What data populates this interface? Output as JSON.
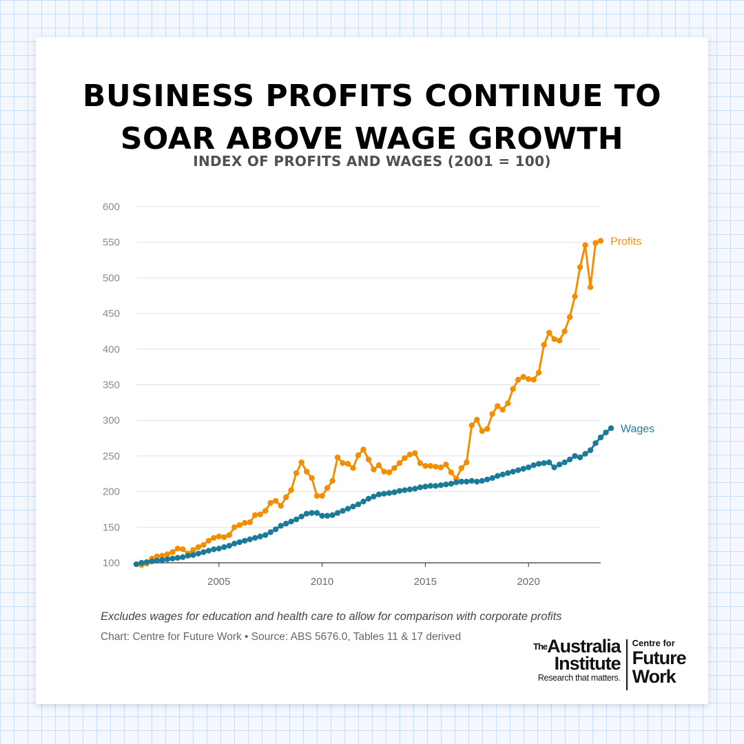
{
  "title_lines": [
    "BUSINESS PROFITS CONTINUE TO",
    "SOAR ABOVE WAGE GROWTH"
  ],
  "subtitle": "INDEX OF PROFITS AND WAGES (2001 = 100)",
  "chart_data": {
    "type": "line",
    "title": "BUSINESS PROFITS CONTINUE TO SOAR ABOVE WAGE GROWTH",
    "subtitle": "INDEX OF PROFITS AND WAGES (2001 = 100)",
    "ylim": [
      100,
      600
    ],
    "y_ticks": [
      100,
      150,
      200,
      250,
      300,
      350,
      400,
      450,
      500,
      550,
      600
    ],
    "xlim": [
      2001.0,
      2023.25
    ],
    "x_ticks": [
      2005,
      2010,
      2015,
      2020
    ],
    "grid": true,
    "legend": "direct labels at line ends",
    "series": [
      {
        "name": "Profits",
        "color": "#f28e00",
        "points": [
          [
            2001.0,
            98
          ],
          [
            2001.25,
            97
          ],
          [
            2001.5,
            99
          ],
          [
            2001.75,
            106
          ],
          [
            2002.0,
            109
          ],
          [
            2002.25,
            110
          ],
          [
            2002.5,
            112
          ],
          [
            2002.75,
            115
          ],
          [
            2003.0,
            120
          ],
          [
            2003.25,
            119
          ],
          [
            2003.5,
            113
          ],
          [
            2003.75,
            118
          ],
          [
            2004.0,
            122
          ],
          [
            2004.25,
            125
          ],
          [
            2004.5,
            131
          ],
          [
            2004.75,
            135
          ],
          [
            2005.0,
            137
          ],
          [
            2005.25,
            136
          ],
          [
            2005.5,
            139
          ],
          [
            2005.75,
            150
          ],
          [
            2006.0,
            153
          ],
          [
            2006.25,
            156
          ],
          [
            2006.5,
            157
          ],
          [
            2006.75,
            167
          ],
          [
            2007.0,
            168
          ],
          [
            2007.25,
            173
          ],
          [
            2007.5,
            184
          ],
          [
            2007.75,
            187
          ],
          [
            2008.0,
            180
          ],
          [
            2008.25,
            192
          ],
          [
            2008.5,
            202
          ],
          [
            2008.75,
            226
          ],
          [
            2009.0,
            241
          ],
          [
            2009.25,
            228
          ],
          [
            2009.5,
            219
          ],
          [
            2009.75,
            194
          ],
          [
            2010.0,
            194
          ],
          [
            2010.25,
            205
          ],
          [
            2010.5,
            215
          ],
          [
            2010.75,
            248
          ],
          [
            2011.0,
            240
          ],
          [
            2011.25,
            239
          ],
          [
            2011.5,
            233
          ],
          [
            2011.75,
            251
          ],
          [
            2012.0,
            259
          ],
          [
            2012.25,
            245
          ],
          [
            2012.5,
            231
          ],
          [
            2012.75,
            237
          ],
          [
            2013.0,
            228
          ],
          [
            2013.25,
            227
          ],
          [
            2013.5,
            233
          ],
          [
            2013.75,
            240
          ],
          [
            2014.0,
            247
          ],
          [
            2014.25,
            252
          ],
          [
            2014.5,
            254
          ],
          [
            2014.75,
            240
          ],
          [
            2015.0,
            236
          ],
          [
            2015.25,
            236
          ],
          [
            2015.5,
            235
          ],
          [
            2015.75,
            234
          ],
          [
            2016.0,
            238
          ],
          [
            2016.25,
            227
          ],
          [
            2016.5,
            218
          ],
          [
            2016.75,
            233
          ],
          [
            2017.0,
            241
          ],
          [
            2017.25,
            293
          ],
          [
            2017.5,
            301
          ],
          [
            2017.75,
            285
          ],
          [
            2018.0,
            288
          ],
          [
            2018.25,
            309
          ],
          [
            2018.5,
            320
          ],
          [
            2018.75,
            315
          ],
          [
            2019.0,
            324
          ],
          [
            2019.25,
            344
          ],
          [
            2019.5,
            357
          ],
          [
            2019.75,
            361
          ],
          [
            2020.0,
            358
          ],
          [
            2020.25,
            357
          ],
          [
            2020.5,
            367
          ],
          [
            2020.75,
            406
          ],
          [
            2021.0,
            423
          ],
          [
            2021.25,
            414
          ],
          [
            2021.5,
            412
          ],
          [
            2021.75,
            425
          ],
          [
            2022.0,
            445
          ],
          [
            2022.25,
            474
          ],
          [
            2022.5,
            515
          ],
          [
            2022.75,
            546
          ],
          [
            2023.0,
            487
          ],
          [
            2023.25,
            549
          ],
          [
            2023.5,
            552
          ]
        ]
      },
      {
        "name": "Wages",
        "color": "#1b7a99",
        "points": [
          [
            2001.0,
            98
          ],
          [
            2001.25,
            100
          ],
          [
            2001.5,
            101
          ],
          [
            2001.75,
            102
          ],
          [
            2002.0,
            103
          ],
          [
            2002.25,
            104
          ],
          [
            2002.5,
            105
          ],
          [
            2002.75,
            106
          ],
          [
            2003.0,
            107
          ],
          [
            2003.25,
            108
          ],
          [
            2003.5,
            110
          ],
          [
            2003.75,
            111
          ],
          [
            2004.0,
            113
          ],
          [
            2004.25,
            115
          ],
          [
            2004.5,
            117
          ],
          [
            2004.75,
            119
          ],
          [
            2005.0,
            120
          ],
          [
            2005.25,
            122
          ],
          [
            2005.5,
            124
          ],
          [
            2005.75,
            127
          ],
          [
            2006.0,
            129
          ],
          [
            2006.25,
            131
          ],
          [
            2006.5,
            133
          ],
          [
            2006.75,
            135
          ],
          [
            2007.0,
            137
          ],
          [
            2007.25,
            139
          ],
          [
            2007.5,
            143
          ],
          [
            2007.75,
            147
          ],
          [
            2008.0,
            152
          ],
          [
            2008.25,
            155
          ],
          [
            2008.5,
            158
          ],
          [
            2008.75,
            161
          ],
          [
            2009.0,
            165
          ],
          [
            2009.25,
            169
          ],
          [
            2009.5,
            170
          ],
          [
            2009.75,
            170
          ],
          [
            2010.0,
            166
          ],
          [
            2010.25,
            166
          ],
          [
            2010.5,
            167
          ],
          [
            2010.75,
            170
          ],
          [
            2011.0,
            173
          ],
          [
            2011.25,
            176
          ],
          [
            2011.5,
            179
          ],
          [
            2011.75,
            182
          ],
          [
            2012.0,
            186
          ],
          [
            2012.25,
            190
          ],
          [
            2012.5,
            193
          ],
          [
            2012.75,
            196
          ],
          [
            2013.0,
            197
          ],
          [
            2013.25,
            198
          ],
          [
            2013.5,
            199
          ],
          [
            2013.75,
            201
          ],
          [
            2014.0,
            202
          ],
          [
            2014.25,
            203
          ],
          [
            2014.5,
            204
          ],
          [
            2014.75,
            206
          ],
          [
            2015.0,
            207
          ],
          [
            2015.25,
            208
          ],
          [
            2015.5,
            208
          ],
          [
            2015.75,
            209
          ],
          [
            2016.0,
            210
          ],
          [
            2016.25,
            211
          ],
          [
            2016.5,
            213
          ],
          [
            2016.75,
            214
          ],
          [
            2017.0,
            214
          ],
          [
            2017.25,
            215
          ],
          [
            2017.5,
            214
          ],
          [
            2017.75,
            215
          ],
          [
            2018.0,
            217
          ],
          [
            2018.25,
            219
          ],
          [
            2018.5,
            222
          ],
          [
            2018.75,
            224
          ],
          [
            2019.0,
            226
          ],
          [
            2019.25,
            228
          ],
          [
            2019.5,
            230
          ],
          [
            2019.75,
            232
          ],
          [
            2020.0,
            234
          ],
          [
            2020.25,
            237
          ],
          [
            2020.5,
            239
          ],
          [
            2020.75,
            240
          ],
          [
            2021.0,
            241
          ],
          [
            2021.25,
            234
          ],
          [
            2021.5,
            238
          ],
          [
            2021.75,
            241
          ],
          [
            2022.0,
            245
          ],
          [
            2022.25,
            250
          ],
          [
            2022.5,
            248
          ],
          [
            2022.75,
            253
          ],
          [
            2023.0,
            258
          ],
          [
            2023.25,
            268
          ],
          [
            2023.5,
            276
          ],
          [
            2023.75,
            283
          ],
          [
            2024.0,
            289
          ]
        ]
      }
    ]
  },
  "footnote": "Excludes wages for education and health care to allow for comparison with corporate profits",
  "source": "Chart: Centre for Future Work • Source: ABS 5676.0, Tables 11 & 17 derived",
  "logo": {
    "tai_the": "The",
    "tai_line1": "Australia",
    "tai_line2": "Institute",
    "tai_tagline": "Research that matters.",
    "cfw_line1": "Centre for",
    "cfw_line2": "Future",
    "cfw_line3": "Work"
  }
}
